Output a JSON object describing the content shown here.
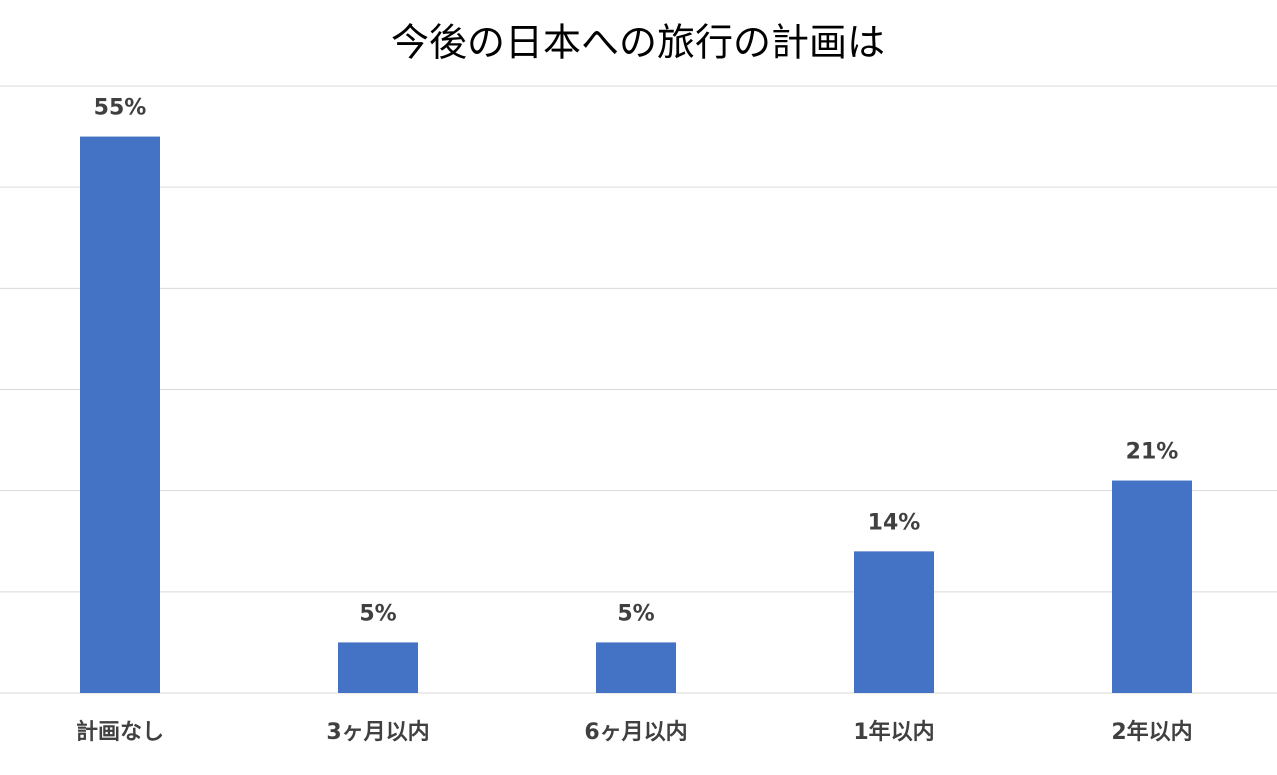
{
  "chart_data": {
    "type": "bar",
    "title": "今後の日本への旅行の計画は",
    "categories": [
      "計画なし",
      "3ヶ月以内",
      "6ヶ月以内",
      "1年以内",
      "2年以内"
    ],
    "values": [
      55,
      5,
      5,
      14,
      21
    ],
    "value_labels": [
      "55%",
      "5%",
      "5%",
      "14%",
      "21%"
    ],
    "color": "#4472c4",
    "ylim": [
      0,
      60
    ],
    "yticks": [
      0,
      10,
      20,
      30,
      40,
      50,
      60
    ],
    "grid": true
  }
}
